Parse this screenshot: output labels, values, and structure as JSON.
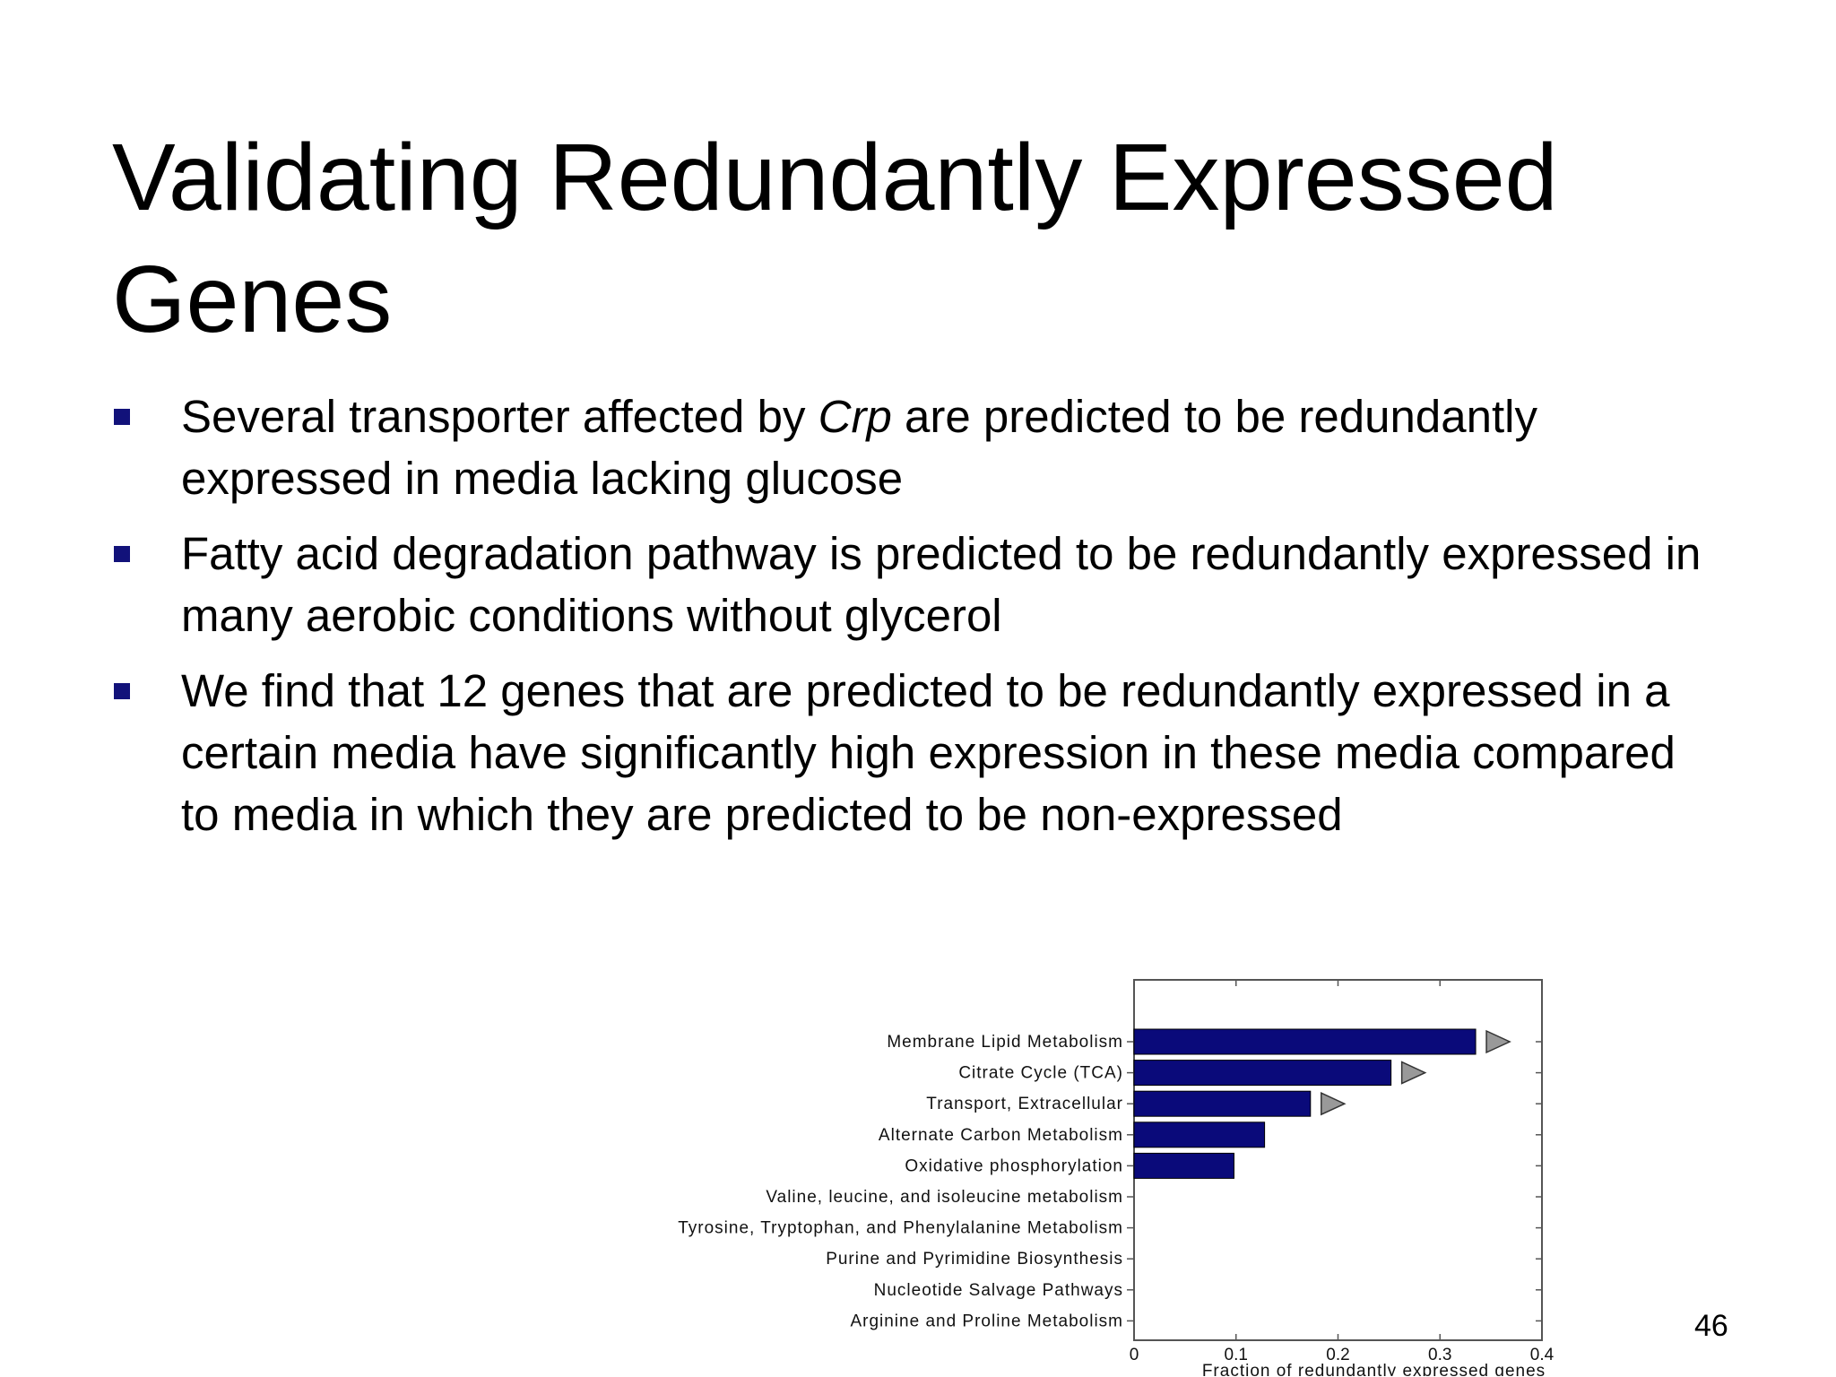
{
  "slide": {
    "title": "Validating Redundantly Expressed Genes",
    "bullets": [
      {
        "before": "Several transporter affected by ",
        "italic": "Crp",
        "after": " are predicted to be redundantly expressed in media lacking glucose"
      },
      {
        "before": "Fatty acid degradation pathway is predicted to be redundantly expressed in many aerobic conditions without glycerol",
        "italic": "",
        "after": ""
      },
      {
        "before": "We find that 12 genes that are predicted to be redundantly expressed in a certain media have significantly high expression in these media compared to media in which they are predicted to be non-expressed",
        "italic": "",
        "after": ""
      }
    ],
    "page_number": "46",
    "bullet_color": "#12127a"
  },
  "chart_data": {
    "type": "bar",
    "orientation": "horizontal",
    "categories": [
      "Membrane Lipid Metabolism",
      "Citrate Cycle (TCA)",
      "Transport, Extracellular",
      "Alternate Carbon Metabolism",
      "Oxidative phosphorylation",
      "Valine, leucine, and isoleucine metabolism",
      "Tyrosine, Tryptophan, and Phenylalanine Metabolism",
      "Purine and Pyrimidine Biosynthesis",
      "Nucleotide Salvage Pathways",
      "Arginine and Proline Metabolism"
    ],
    "values": [
      0.335,
      0.252,
      0.173,
      0.128,
      0.098,
      0,
      0,
      0,
      0,
      0
    ],
    "significant": [
      true,
      true,
      true,
      false,
      false,
      false,
      false,
      false,
      false,
      false
    ],
    "xlim": [
      0,
      0.4
    ],
    "xticks": [
      "0",
      "0.1",
      "0.2",
      "0.3",
      "0.4"
    ],
    "xlabel": "Fraction of redundantly expressed genes",
    "bar_color": "#0a0a7a",
    "marker_color": "#999999"
  }
}
